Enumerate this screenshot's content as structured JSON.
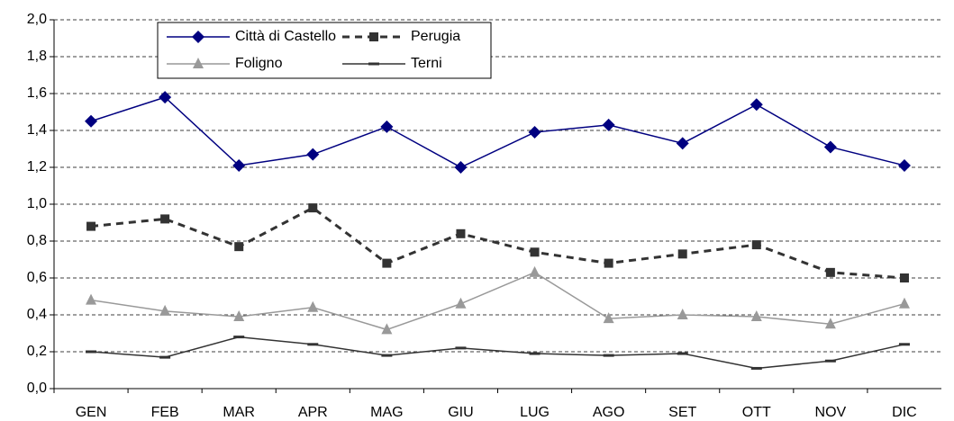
{
  "chart_data": {
    "type": "line",
    "categories": [
      "GEN",
      "FEB",
      "MAR",
      "APR",
      "MAG",
      "GIU",
      "LUG",
      "AGO",
      "SET",
      "OTT",
      "NOV",
      "DIC"
    ],
    "series": [
      {
        "name": "Città di Castello",
        "color": "#000080",
        "marker": "diamond",
        "dashed": false,
        "values": [
          1.45,
          1.58,
          1.21,
          1.27,
          1.42,
          1.2,
          1.39,
          1.43,
          1.33,
          1.54,
          1.31,
          1.21
        ]
      },
      {
        "name": "Perugia",
        "color": "#333333",
        "marker": "square",
        "dashed": true,
        "values": [
          0.88,
          0.92,
          0.77,
          0.98,
          0.68,
          0.84,
          0.74,
          0.68,
          0.73,
          0.78,
          0.63,
          0.6
        ]
      },
      {
        "name": "Foligno",
        "color": "#999999",
        "marker": "triangle",
        "dashed": false,
        "values": [
          0.48,
          0.42,
          0.39,
          0.44,
          0.32,
          0.46,
          0.63,
          0.38,
          0.4,
          0.39,
          0.35,
          0.46
        ]
      },
      {
        "name": "Terni",
        "color": "#333333",
        "marker": "dash",
        "dashed": false,
        "values": [
          0.2,
          0.17,
          0.28,
          0.24,
          0.18,
          0.22,
          0.19,
          0.18,
          0.19,
          0.11,
          0.15,
          0.24
        ]
      }
    ],
    "ylim": [
      0,
      2
    ],
    "yticks": [
      {
        "value": 0,
        "label": "0,0"
      },
      {
        "value": 0.2,
        "label": "0,2"
      },
      {
        "value": 0.4,
        "label": "0,4"
      },
      {
        "value": 0.6,
        "label": "0,6"
      },
      {
        "value": 0.8,
        "label": "0,8"
      },
      {
        "value": 1,
        "label": "1,0"
      },
      {
        "value": 1.2,
        "label": "1,2"
      },
      {
        "value": 1.4,
        "label": "1,4"
      },
      {
        "value": 1.6,
        "label": "1,6"
      },
      {
        "value": 1.8,
        "label": "1,8"
      },
      {
        "value": 2,
        "label": "2,0"
      }
    ],
    "grid": true,
    "legend": "top-left"
  }
}
